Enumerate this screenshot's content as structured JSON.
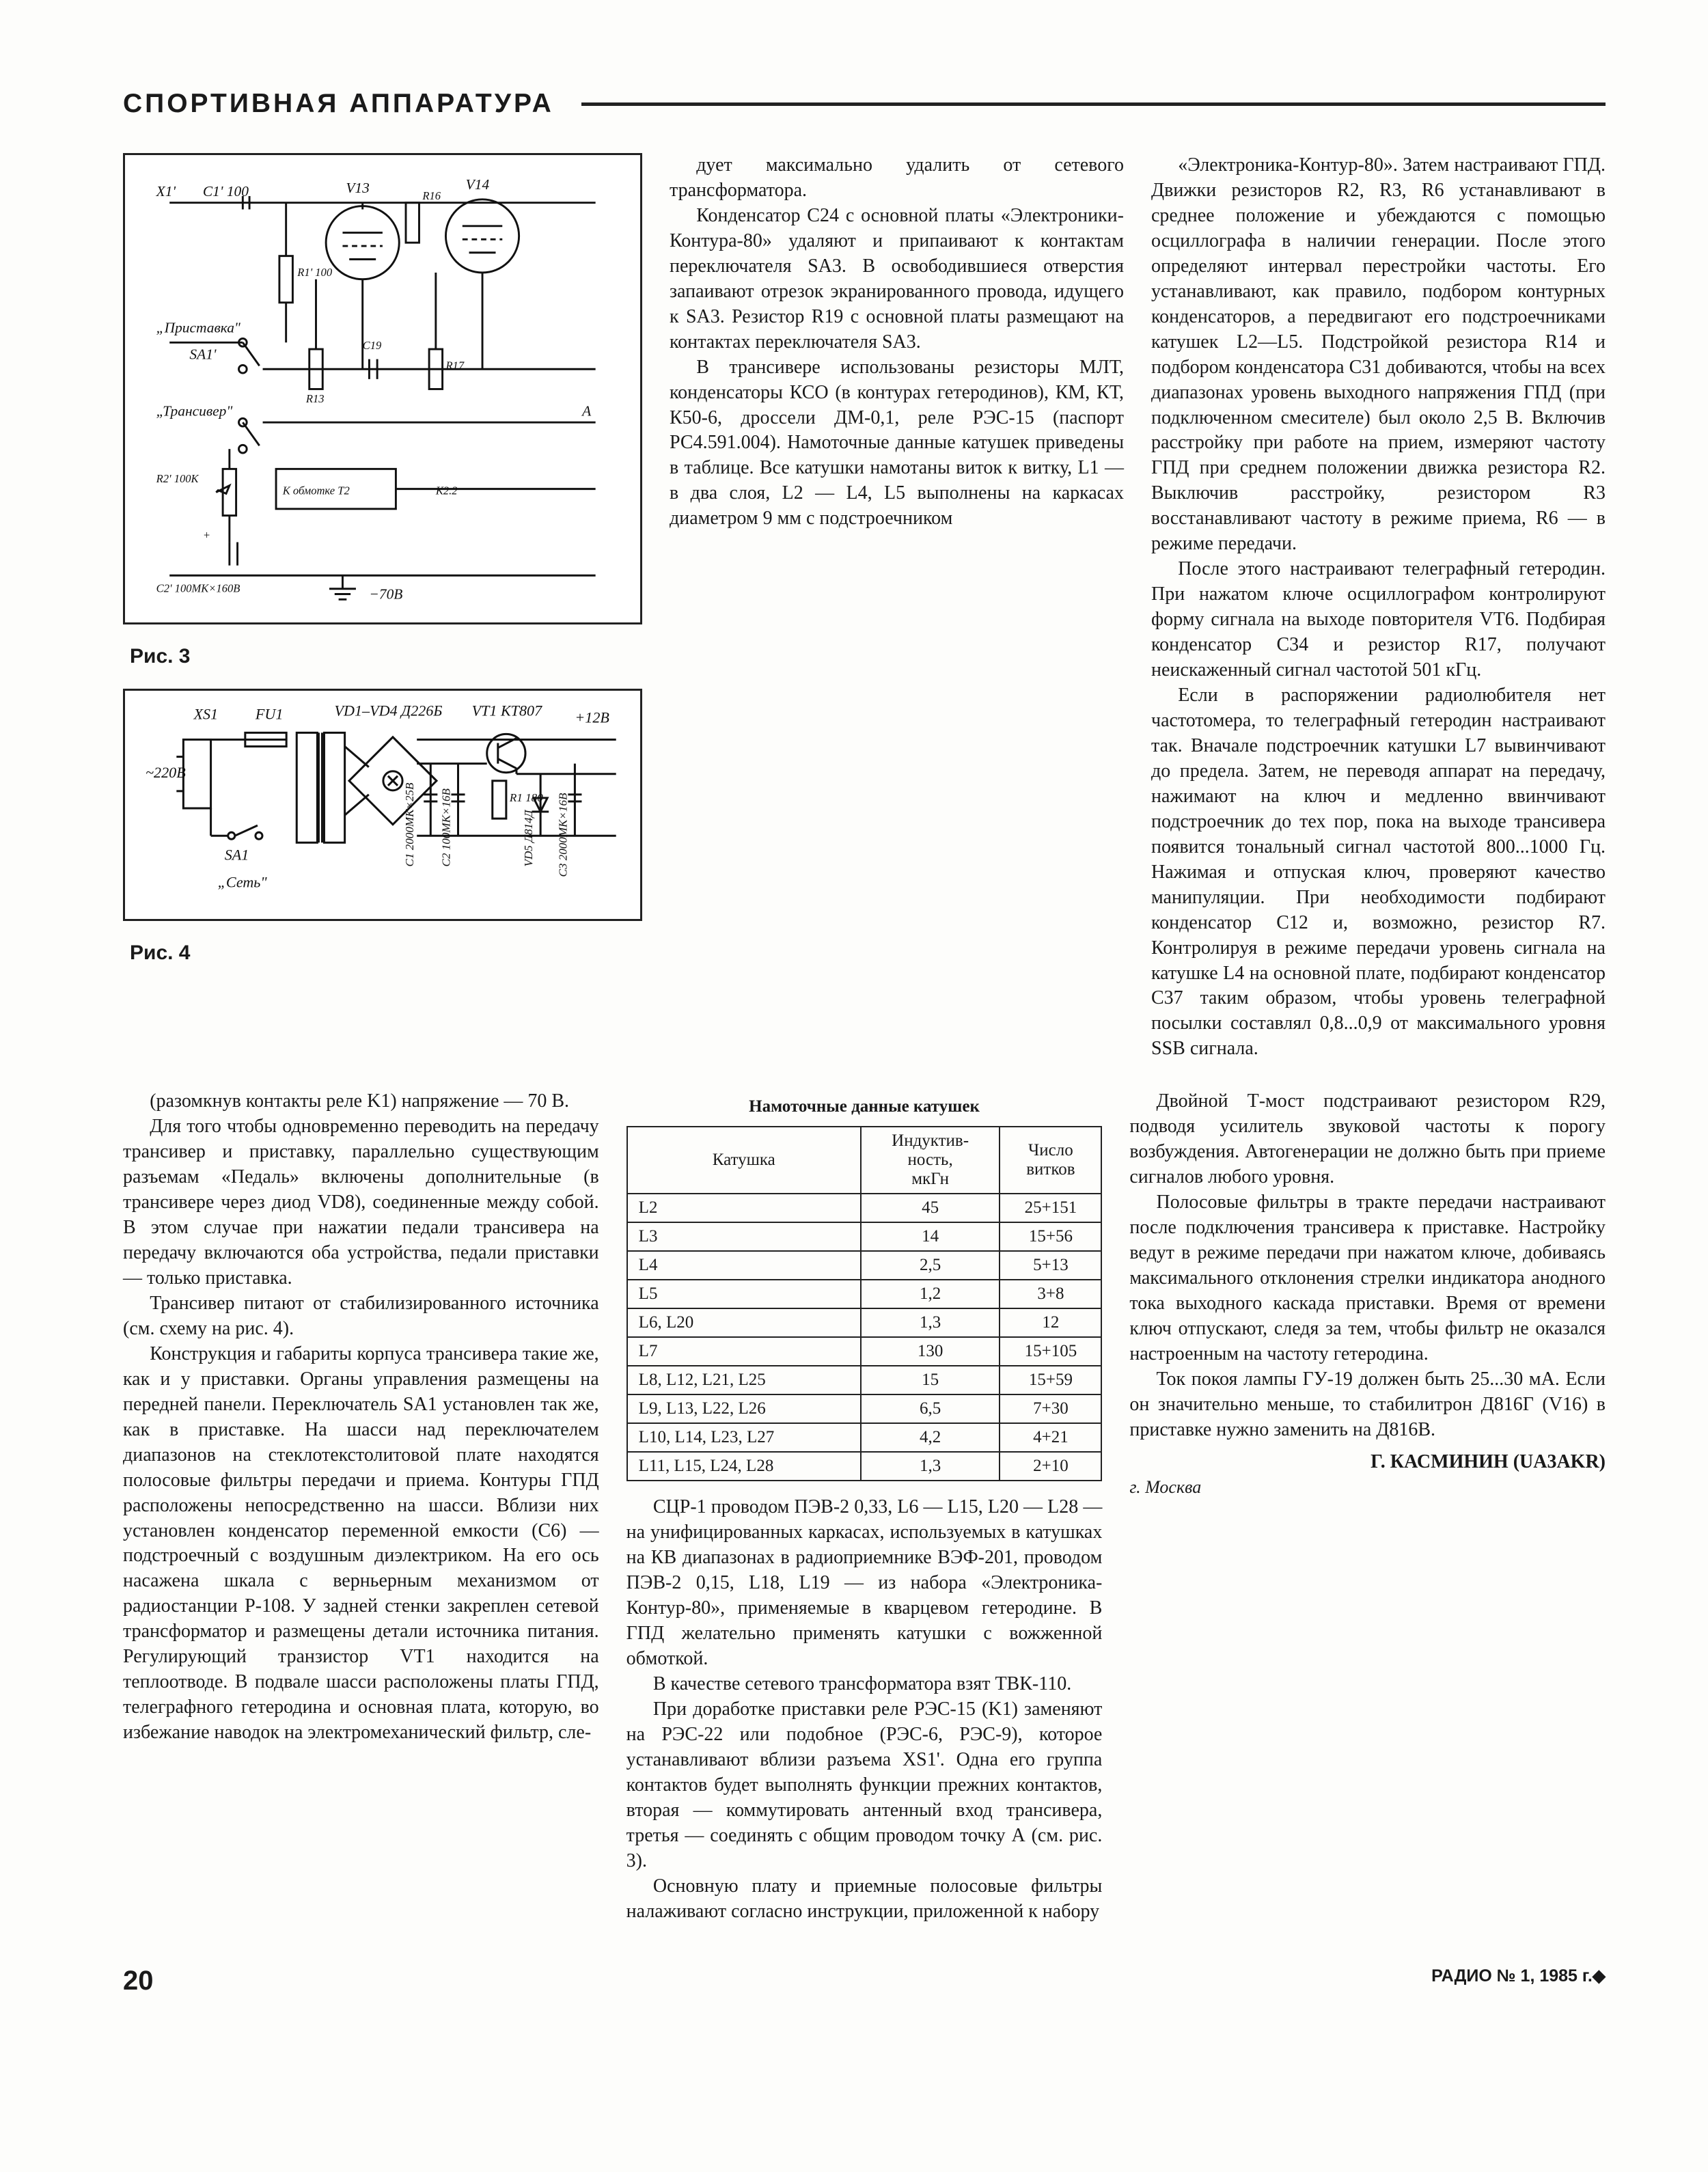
{
  "header_title": "СПОРТИВНАЯ   АППАРАТУРА",
  "fig3_label": "Рис. 3",
  "fig4_label": "Рис. 4",
  "sch3_labels": {
    "x1": "X1'",
    "c1": "C1' 100",
    "v13": "V13",
    "r16": "R16",
    "v14": "V14",
    "r1": "R1' 100",
    "pristavka": "„Приставка\"",
    "sa1": "SA1'",
    "r13": "R13",
    "c19": "C19",
    "r17": "R17",
    "transiver": "„Трансивер\"",
    "a": "A",
    "r2": "R2' 100K",
    "kobm": "К обмотке Т2",
    "k22": "K2.2",
    "c2": "C2' 100МК×160В",
    "minus70": "−70B"
  },
  "sch4_labels": {
    "xs1": "XS1",
    "fu1": "FU1",
    "vd": "VD1–VD4 Д226Б",
    "vt1": "VT1 КТ807",
    "p12": "+12В",
    "220v": "~220В",
    "sa1": "SA1",
    "set": "„Сеть\"",
    "c1": "C1 2000МК×25В",
    "c2": "C2 100МК×16В",
    "r1": "R1 180",
    "vd5": "VD5 Д814Д",
    "c3": "C3 2000МК×16В"
  },
  "table_title": "Намоточные данные катушек",
  "table_headers": [
    "Катушка",
    "Индуктив-\nность,\nмкГн",
    "Число\nвитков"
  ],
  "table_rows": [
    [
      "L2",
      "45",
      "25+151"
    ],
    [
      "L3",
      "14",
      "15+56"
    ],
    [
      "L4",
      "2,5",
      "5+13"
    ],
    [
      "L5",
      "1,2",
      "3+8"
    ],
    [
      "L6, L20",
      "1,3",
      "12"
    ],
    [
      "L7",
      "130",
      "15+105"
    ],
    [
      "L8, L12, L21, L25",
      "15",
      "15+59"
    ],
    [
      "L9, L13, L22, L26",
      "6,5",
      "7+30"
    ],
    [
      "L10, L14, L23, L27",
      "4,2",
      "4+21"
    ],
    [
      "L11, L15, L24, L28",
      "1,3",
      "2+10"
    ]
  ],
  "col1": [
    "(разомкнув контакты реле K1) напряжение — 70 В.",
    "Для того чтобы одновременно переводить на передачу трансивер и приставку, параллельно существующим разъемам «Педаль» включены дополнительные (в трансивере через диод VD8), соединенные между собой. В этом случае при нажатии педали трансивера на передачу включаются оба устройства, педали приставки — только приставка.",
    "Трансивер питают от стабилизированного источника (см. схему на рис. 4).",
    "Конструкция и габариты корпуса трансивера такие же, как и у приставки. Органы управления размещены на передней панели. Переключатель SA1 установлен так же, как в приставке. На шасси над переключателем диапазонов на стеклотекстолитовой плате находятся полосовые фильтры передачи и приема. Контуры ГПД расположены непосредственно на шасси. Вблизи них установлен конденсатор переменной емкости (С6) — подстроечный с воздушным диэлектриком. На его ось насажена шкала с верньерным механизмом от радиостанции Р-108. У задней стенки закреплен сетевой трансформатор и размещены детали источника питания. Регулирующий транзистор VT1 находится на теплоотводе. В подвале шасси расположены платы ГПД, телеграфного гетеродина и основная плата, которую, во избежание наводок на электромеханический фильтр, сле-"
  ],
  "col2_top": [
    "дует максимально удалить от сетевого трансформатора.",
    "Конденсатор С24 с основной платы «Электроники-Контура-80» удаляют и припаивают к контактам переключателя SA3. В освободившиеся отверстия запаивают отрезок экранированного провода, идущего к SA3. Резистор R19 с основной платы размещают на контактах переключателя SA3.",
    "В трансивере использованы резисторы МЛТ, конденсаторы КСО (в контурах гетеродинов), КМ, КТ, К50-6, дроссели ДМ-0,1, реле РЭС-15 (паспорт РС4.591.004). Намоточные данные катушек приведены в таблице. Все катушки намотаны виток к витку, L1 — в два слоя, L2 — L4, L5 выполнены на каркасах диаметром 9 мм с подстроечником"
  ],
  "col2_bottom": [
    "СЦР-1 проводом ПЭВ-2 0,33, L6 — L15, L20 — L28 — на унифицированных каркасах, используемых в катушках на КВ диапазонах в радиоприемнике ВЭФ-201, проводом ПЭВ-2 0,15, L18, L19 — из набора «Электроника-Контур-80», применяемые в кварцевом гетеродине. В ГПД желательно применять катушки с вожженной обмоткой.",
    "В качестве сетевого трансформатора взят ТВК-110.",
    "При доработке приставки реле РЭС-15 (K1) заменяют на РЭС-22 или подобное (РЭС-6, РЭС-9), которое устанавливают вблизи разъема XS1'. Одна его группа контактов будет выполнять функции прежних контактов, вторая — коммутировать антенный вход трансивера, третья — соединять с общим проводом точку А (см. рис. 3).",
    "Основную плату и приемные полосовые фильтры налаживают согласно инструкции, приложенной к набору"
  ],
  "col3": [
    "«Электроника-Контур-80». Затем настраивают ГПД. Движки резисторов R2, R3, R6 устанавливают в среднее положение и убеждаются с помощью осциллографа в наличии генерации. После этого определяют интервал перестройки частоты. Его устанавливают, как правило, подбором контурных конденсаторов, а передвигают его подстроечниками катушек L2—L5. Подстройкой резистора R14 и подбором конденсатора С31 добиваются, чтобы на всех диапазонах уровень выходного напряжения ГПД (при подключенном смесителе) был около 2,5 В. Включив расстройку при работе на прием, измеряют частоту ГПД при среднем положении движка резистора R2. Выключив расстройку, резистором R3 восстанавливают частоту в режиме приема, R6 — в режиме передачи.",
    "После этого настраивают телеграфный гетеродин. При нажатом ключе осциллографом контролируют форму сигнала на выходе повторителя VT6. Подбирая конденсатор C34 и резистор R17, получают неискаженный сигнал частотой 501 кГц.",
    "Если в распоряжении радиолюбителя нет частотомера, то телеграфный гетеродин настраивают так. Вначале подстроечник катушки L7 вывинчивают до предела. Затем, не переводя аппарат на передачу, нажимают на ключ и медленно ввинчивают подстроечник до тех пор, пока на выходе трансивера появится тональный сигнал частотой 800...1000 Гц. Нажимая и отпуская ключ, проверяют качество манипуляции. При необходимости подбирают конденсатор С12 и, возможно, резистор R7. Контролируя в режиме передачи уровень сигнала на катушке L4 на основной плате, подбирают конденсатор С37 таким образом, чтобы уровень телеграфной посылки составлял 0,8...0,9 от максимального уровня SSB сигнала.",
    "Двойной Т-мост подстраивают резистором R29, подводя усилитель звуковой частоты к порогу возбуждения. Автогенерации не должно быть при приеме сигналов любого уровня.",
    "Полосовые фильтры в тракте передачи настраивают после подключения трансивера к приставке. Настройку ведут в режиме передачи при нажатом ключе, добиваясь максимального отклонения стрелки индикатора анодного тока выходного каскада приставки. Время от времени ключ отпускают, следя за тем, чтобы фильтр не оказался настроенным на частоту гетеродина.",
    "Ток покоя лампы ГУ-19 должен быть 25...30 мА. Если он значительно меньше, то стабилитрон Д816Г (V16) в приставке нужно заменить на Д816В."
  ],
  "author": "Г. КАСМИНИН (UA3AKR)",
  "city": "г. Москва",
  "page_num": "20",
  "journal_ref": "РАДИО № 1, 1985 г.◆"
}
